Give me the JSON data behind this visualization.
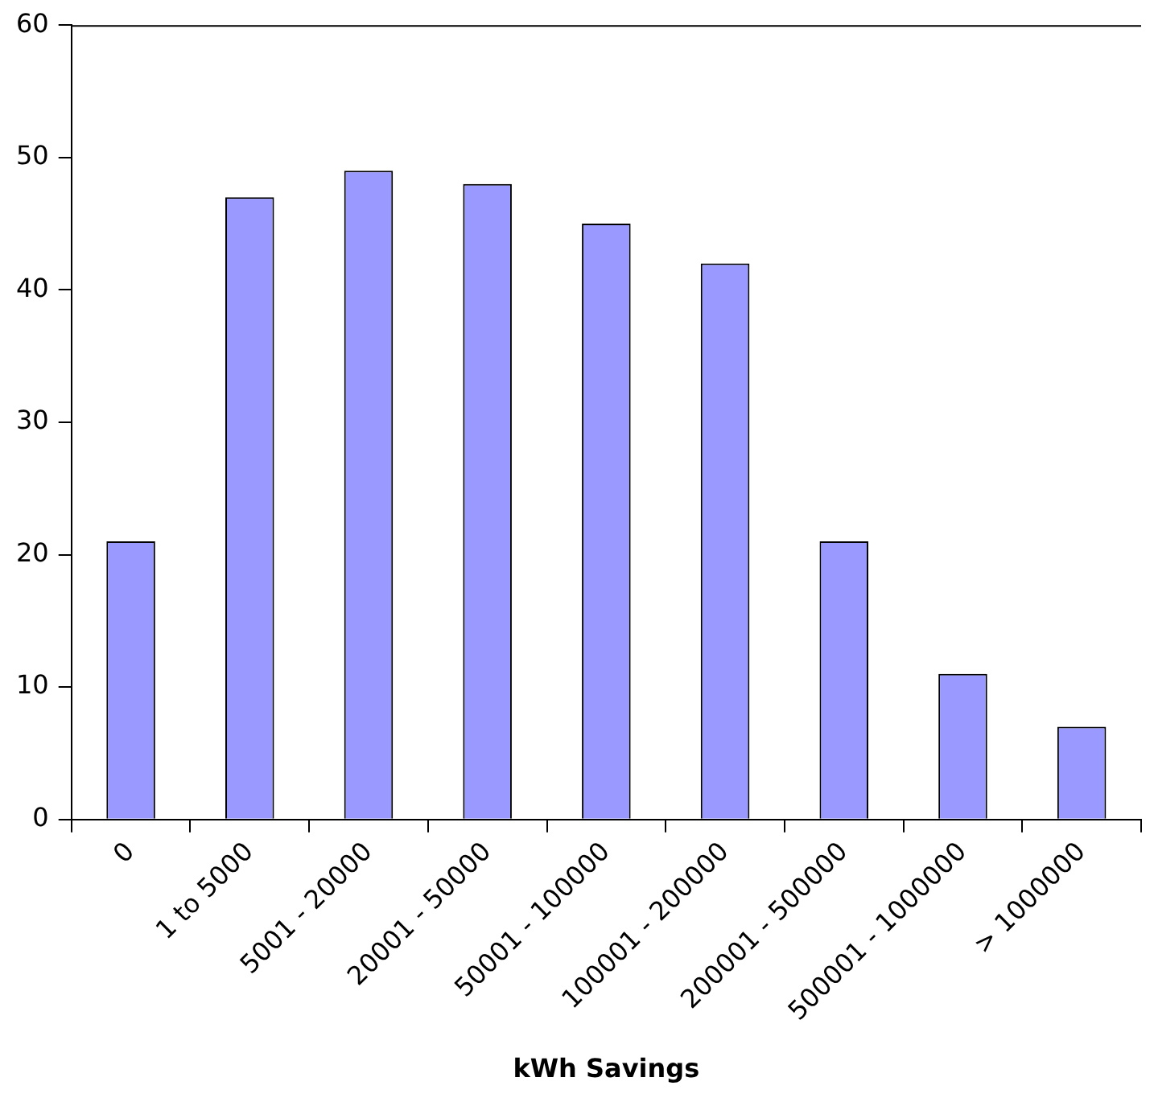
{
  "chart_data": {
    "type": "bar",
    "xlabel": "kWh Savings",
    "categories": [
      "0",
      "1 to 5000",
      "5001 - 20000",
      "20001 - 50000",
      "50001 - 100000",
      "100001 - 200000",
      "200001 - 500000",
      "500001 - 1000000",
      "> 1000000"
    ],
    "values": [
      21,
      47,
      49,
      48,
      45,
      42,
      21,
      11,
      7
    ],
    "color": "#9999ff",
    "ylim": [
      0,
      60
    ],
    "yticks": [
      0,
      10,
      20,
      30,
      40,
      50,
      60
    ],
    "grid": false,
    "legend": false
  }
}
